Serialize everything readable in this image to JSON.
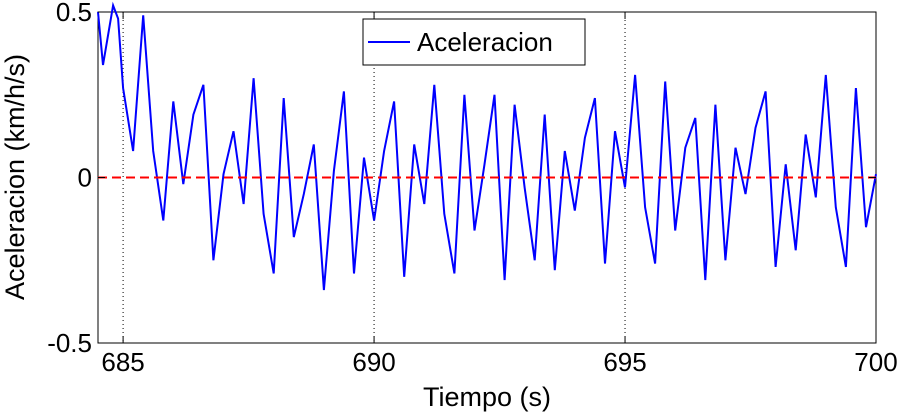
{
  "chart_data": {
    "type": "line",
    "title": "",
    "xlabel": "Tiempo (s)",
    "ylabel": "Aceleracion (km/h/s)",
    "xlim": [
      684.5,
      700
    ],
    "ylim": [
      -0.5,
      0.5
    ],
    "xticks": [
      685,
      690,
      695,
      700
    ],
    "xtick_labels": [
      "685",
      "690",
      "695",
      "700"
    ],
    "yticks": [
      -0.5,
      0,
      0.5
    ],
    "ytick_labels": [
      "-0.5",
      "0",
      "0.5"
    ],
    "vertical_grid": [
      685,
      690,
      695
    ],
    "legend": {
      "position": "top-center",
      "entries": [
        "Aceleracion"
      ]
    },
    "series": [
      {
        "name": "Aceleracion",
        "color": "#0000ff",
        "style": "solid",
        "x": [
          684.5,
          684.6,
          684.8,
          684.9,
          685.0,
          685.2,
          685.4,
          685.6,
          685.8,
          686.0,
          686.2,
          686.4,
          686.6,
          686.8,
          687.0,
          687.2,
          687.4,
          687.6,
          687.8,
          688.0,
          688.2,
          688.4,
          688.6,
          688.8,
          689.0,
          689.2,
          689.4,
          689.6,
          689.8,
          690.0,
          690.2,
          690.4,
          690.6,
          690.8,
          691.0,
          691.2,
          691.4,
          691.6,
          691.8,
          692.0,
          692.2,
          692.4,
          692.6,
          692.8,
          693.0,
          693.2,
          693.4,
          693.6,
          693.8,
          694.0,
          694.2,
          694.4,
          694.6,
          694.8,
          695.0,
          695.2,
          695.4,
          695.6,
          695.8,
          696.0,
          696.2,
          696.4,
          696.6,
          696.8,
          697.0,
          697.2,
          697.4,
          697.6,
          697.8,
          698.0,
          698.2,
          698.4,
          698.6,
          698.8,
          699.0,
          699.2,
          699.4,
          699.6,
          699.8,
          700.0
        ],
        "y": [
          0.5,
          0.34,
          0.52,
          0.48,
          0.27,
          0.08,
          0.49,
          0.08,
          -0.13,
          0.23,
          -0.02,
          0.19,
          0.28,
          -0.25,
          0.01,
          0.14,
          -0.08,
          0.3,
          -0.11,
          -0.29,
          0.24,
          -0.18,
          -0.05,
          0.1,
          -0.34,
          0.02,
          0.26,
          -0.29,
          0.06,
          -0.13,
          0.08,
          0.23,
          -0.3,
          0.1,
          -0.08,
          0.28,
          -0.11,
          -0.29,
          0.25,
          -0.16,
          0.04,
          0.25,
          -0.31,
          0.22,
          -0.03,
          -0.25,
          0.19,
          -0.28,
          0.08,
          -0.1,
          0.12,
          0.24,
          -0.26,
          0.14,
          -0.03,
          0.31,
          -0.09,
          -0.26,
          0.29,
          -0.16,
          0.09,
          0.18,
          -0.31,
          0.22,
          -0.25,
          0.09,
          -0.05,
          0.15,
          0.26,
          -0.27,
          0.04,
          -0.22,
          0.13,
          -0.06,
          0.31,
          -0.09,
          -0.27,
          0.27,
          -0.15,
          0.01
        ]
      },
      {
        "name": "",
        "color": "#ff0000",
        "style": "dashed",
        "x": [
          684.5,
          700.0
        ],
        "y": [
          0,
          0
        ]
      }
    ],
    "grid": "vertical-dotted"
  }
}
